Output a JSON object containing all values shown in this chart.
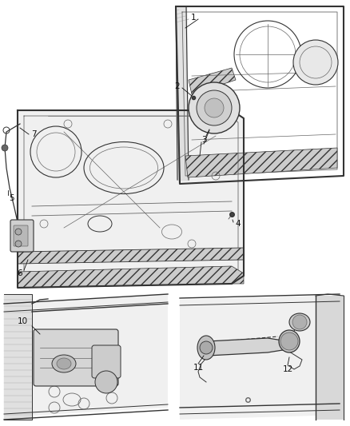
{
  "background_color": "#ffffff",
  "fig_width": 4.38,
  "fig_height": 5.33,
  "dpi": 100,
  "label_fontsize": 7.5,
  "label_color": "#111111",
  "line_color": "#333333",
  "light_line": "#666666",
  "lw_main": 1.0,
  "lw_thin": 0.5,
  "hatch_color": "#888888"
}
